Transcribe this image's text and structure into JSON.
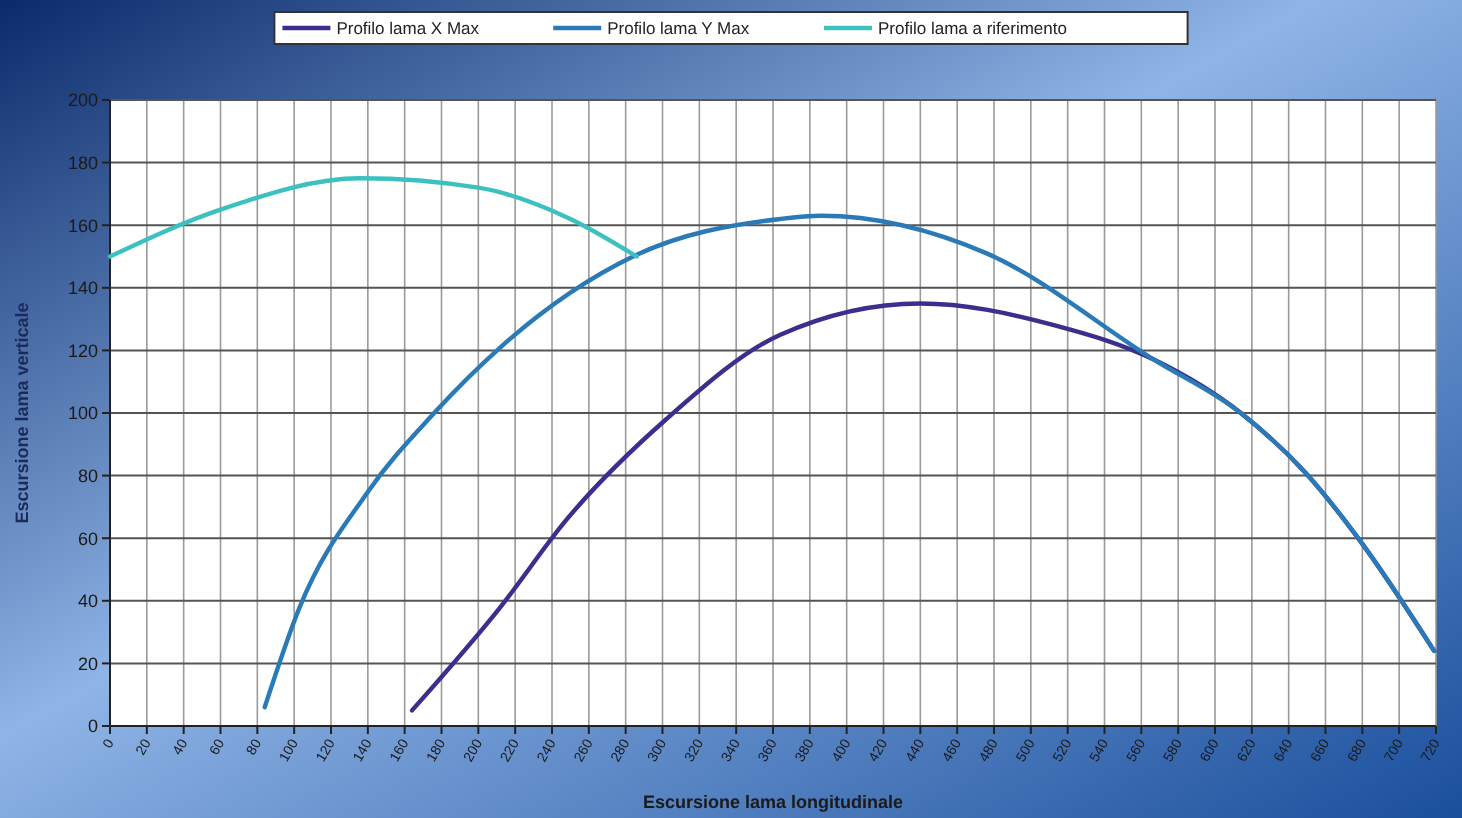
{
  "chart_data": {
    "type": "line",
    "xlabel": "Escursione lama longitudinale",
    "ylabel": "Escursione lama verticale",
    "xlim": [
      0,
      720
    ],
    "xticks": [
      0,
      20,
      40,
      60,
      80,
      100,
      120,
      140,
      160,
      180,
      200,
      220,
      240,
      260,
      280,
      300,
      320,
      340,
      360,
      380,
      400,
      420,
      440,
      460,
      480,
      500,
      520,
      540,
      560,
      580,
      600,
      620,
      640,
      660,
      680,
      700,
      720
    ],
    "ylim": [
      0,
      200
    ],
    "yticks": [
      0,
      20,
      40,
      60,
      80,
      100,
      120,
      140,
      160,
      180,
      200
    ],
    "grid": true,
    "legend": "top",
    "marker": "none",
    "line_style": "solid",
    "series": [
      {
        "name": "Profilo lama X Max",
        "color": "#3c2e8c",
        "x": [
          164,
          212,
          248,
          302,
          364,
          440,
          513,
          567,
          614,
          649,
          679,
          719
        ],
        "values": [
          5,
          38,
          66,
          98,
          125,
          135,
          128,
          117,
          100,
          81,
          59,
          24
        ]
      },
      {
        "name": "Profilo lama Y Max",
        "color": "#2a7ab8",
        "x": [
          84,
          103,
          139,
          176,
          212,
          284,
          364,
          386,
          476,
          567,
          614,
          649,
          679,
          719
        ],
        "values": [
          6,
          38,
          74,
          100,
          121,
          150,
          162,
          163,
          151,
          117,
          100,
          81,
          59,
          24
        ]
      },
      {
        "name": "Profilo lama a riferimento",
        "color": "#3cc0c0",
        "x": [
          0,
          60,
          136,
          200,
          250,
          286
        ],
        "values": [
          150,
          165,
          175,
          172,
          162,
          150
        ]
      }
    ]
  }
}
